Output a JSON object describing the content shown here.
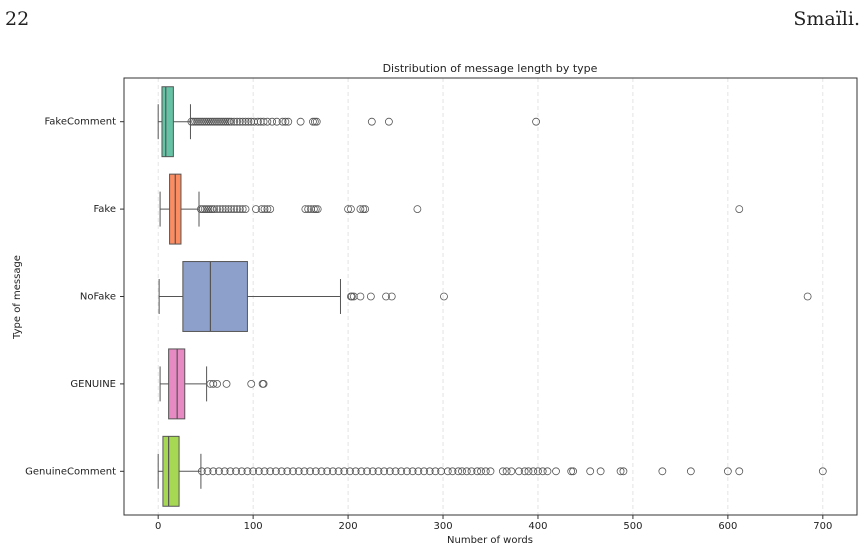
{
  "header": {
    "page_number": "22",
    "author": "Smaïli."
  },
  "chart_data": {
    "type": "box",
    "title": "Distribution of message length by type",
    "x_label": "Number of words",
    "y_label": "Type of message",
    "xlim": [
      -36,
      736
    ],
    "xticks": [
      0,
      100,
      200,
      300,
      400,
      500,
      600,
      700
    ],
    "grid": true,
    "boxes": [
      {
        "name": "FakeComment",
        "color": "#66c2a5",
        "whislo": 0,
        "q1": 4,
        "med": 8,
        "q3": 16,
        "whishi": 34,
        "fliers": [
          35,
          37,
          39,
          41,
          43,
          45,
          47,
          49,
          51,
          53,
          55,
          57,
          59,
          61,
          63,
          65,
          67,
          69,
          71,
          73,
          75,
          77,
          80,
          83,
          86,
          89,
          92,
          95,
          98,
          101,
          105,
          108,
          111,
          115,
          120,
          125,
          131,
          134,
          137,
          150,
          163,
          165,
          167,
          225,
          243,
          398
        ]
      },
      {
        "name": "Fake",
        "color": "#fc8d62",
        "whislo": 2,
        "q1": 12,
        "med": 18,
        "q3": 24,
        "whishi": 43,
        "fliers": [
          45,
          47,
          49,
          51,
          53,
          55,
          57,
          59,
          62,
          65,
          68,
          71,
          74,
          77,
          80,
          83,
          86,
          89,
          92,
          103,
          109,
          112,
          115,
          118,
          155,
          158,
          161,
          164,
          166,
          168,
          200,
          203,
          213,
          216,
          218,
          273,
          612
        ]
      },
      {
        "name": "NoFake",
        "color": "#8da0cb",
        "whislo": 1,
        "q1": 26,
        "med": 55,
        "q3": 94,
        "whishi": 192,
        "fliers": [
          203,
          204,
          206,
          213,
          224,
          240,
          246,
          301,
          684
        ]
      },
      {
        "name": "GENUINE",
        "color": "#e78ac3",
        "whislo": 2,
        "q1": 11,
        "med": 20,
        "q3": 28,
        "whishi": 51,
        "fliers": [
          55,
          58,
          62,
          72,
          98,
          110,
          111
        ]
      },
      {
        "name": "GenuineComment",
        "color": "#a6d854",
        "whislo": 0,
        "q1": 5,
        "med": 11,
        "q3": 22,
        "whishi": 45,
        "fliers": [
          46,
          52,
          58,
          64,
          70,
          76,
          82,
          88,
          94,
          100,
          106,
          112,
          118,
          124,
          130,
          136,
          142,
          148,
          154,
          160,
          166,
          172,
          178,
          184,
          190,
          196,
          202,
          208,
          214,
          220,
          226,
          232,
          238,
          244,
          250,
          256,
          262,
          268,
          274,
          280,
          286,
          292,
          298,
          305,
          310,
          316,
          320,
          325,
          330,
          336,
          340,
          345,
          350,
          363,
          367,
          372,
          380,
          386,
          390,
          395,
          400,
          405,
          410,
          419,
          435,
          437,
          455,
          466,
          487,
          490,
          531,
          561,
          600,
          612,
          700
        ]
      }
    ]
  }
}
